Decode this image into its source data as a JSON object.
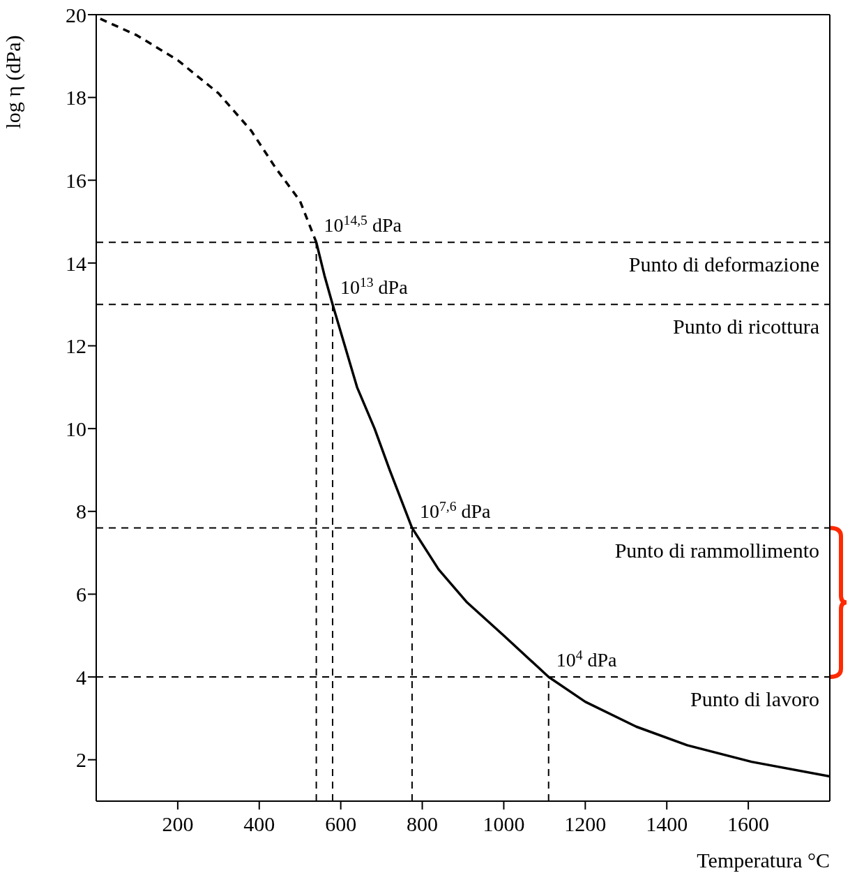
{
  "chart_data": {
    "type": "line",
    "ylabel": "log η (dPa)",
    "xlabel": "Temperatura °C",
    "xlim": [
      0,
      1800
    ],
    "xticks": [
      200,
      400,
      600,
      800,
      1000,
      1200,
      1400,
      1600
    ],
    "ylim": [
      1,
      20
    ],
    "yticks": [
      2,
      4,
      6,
      8,
      10,
      12,
      14,
      16,
      18,
      20
    ],
    "marker": "none",
    "series": [
      {
        "color": "#000000",
        "line_style": "dashed",
        "x": [
          10,
          100,
          200,
          300,
          380,
          440,
          500,
          540
        ],
        "values": [
          19.9,
          19.5,
          18.9,
          18.1,
          17.2,
          16.3,
          15.5,
          14.5
        ]
      },
      {
        "color": "#000000",
        "line_style": "solid",
        "x": [
          540,
          560,
          580,
          610,
          640,
          683,
          720,
          775,
          840,
          910,
          1000,
          1110,
          1200,
          1325,
          1450,
          1608,
          1800
        ],
        "values": [
          14.5,
          13.7,
          13,
          12,
          11,
          10,
          9,
          7.6,
          6.6,
          5.8,
          5,
          4,
          3.4,
          2.8,
          2.35,
          1.95,
          1.6
        ]
      },
      {
        "color": "#000000",
        "line_style": "dashed",
        "x": [
          540,
          540
        ],
        "values": [
          1,
          14.5
        ]
      },
      {
        "color": "#000000",
        "line_style": "dashed",
        "x": [
          580,
          580
        ],
        "values": [
          1,
          13
        ]
      },
      {
        "color": "#000000",
        "line_style": "dashed",
        "x": [
          775,
          775
        ],
        "values": [
          1,
          7.6
        ]
      },
      {
        "color": "#000000",
        "line_style": "dashed",
        "x": [
          1110,
          1110
        ],
        "values": [
          1,
          4
        ]
      }
    ],
    "ref_lines": [
      {
        "axis": "y",
        "value": 14.5,
        "label": "Punto di deformazione",
        "color": "#000000",
        "line_style": "dashed"
      },
      {
        "axis": "y",
        "value": 13,
        "label": "Punto di ricottura",
        "color": "#000000",
        "line_style": "dashed"
      },
      {
        "axis": "y",
        "value": 7.6,
        "label": "Punto di rammollimento",
        "color": "#000000",
        "line_style": "dashed"
      },
      {
        "axis": "y",
        "value": 4,
        "label": "Punto di lavoro",
        "color": "#000000",
        "line_style": "dashed"
      }
    ],
    "annotations": [
      {
        "text": "10$^{14,5}$ dPa",
        "x": 540,
        "y": 14.5
      },
      {
        "text": "10$^{13}$ dPa",
        "x": 580,
        "y": 13
      },
      {
        "text": "10$^{7,6}$ dPa",
        "x": 775,
        "y": 7.6
      },
      {
        "text": "10$^{4}$ dPa",
        "x": 1110,
        "y": 4
      }
    ]
  }
}
